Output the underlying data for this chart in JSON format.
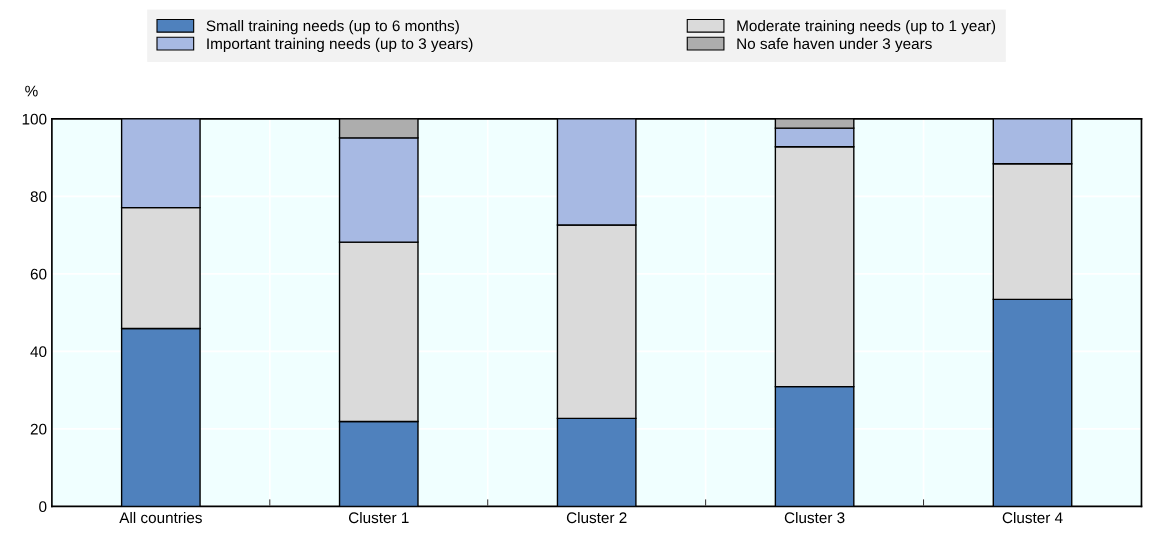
{
  "chart_data": {
    "type": "bar",
    "stacked": true,
    "ylabel": "%",
    "categories": [
      "All countries",
      "Cluster 1",
      "Cluster 2",
      "Cluster 3",
      "Cluster 4"
    ],
    "series": [
      {
        "name": "Small training needs (up to 6 months)",
        "color": "#4f81bd",
        "values": [
          45.9,
          21.9,
          22.7,
          30.9,
          53.4
        ]
      },
      {
        "name": "Moderate training needs (up to 1 year)",
        "color": "#dadada",
        "values": [
          31.2,
          46.3,
          49.9,
          61.9,
          35.0
        ]
      },
      {
        "name": "Important training needs (up to 3 years)",
        "color": "#a7b9e3",
        "values": [
          22.9,
          26.9,
          27.4,
          4.8,
          11.6
        ]
      },
      {
        "name": "No safe haven under 3 years",
        "color": "#adadad",
        "values": [
          null,
          4.9,
          null,
          2.4,
          null
        ]
      }
    ],
    "ylim": [
      0,
      100
    ],
    "yticks": [
      0,
      20,
      40,
      60,
      80,
      100
    ],
    "grid": true,
    "legend": "top"
  }
}
